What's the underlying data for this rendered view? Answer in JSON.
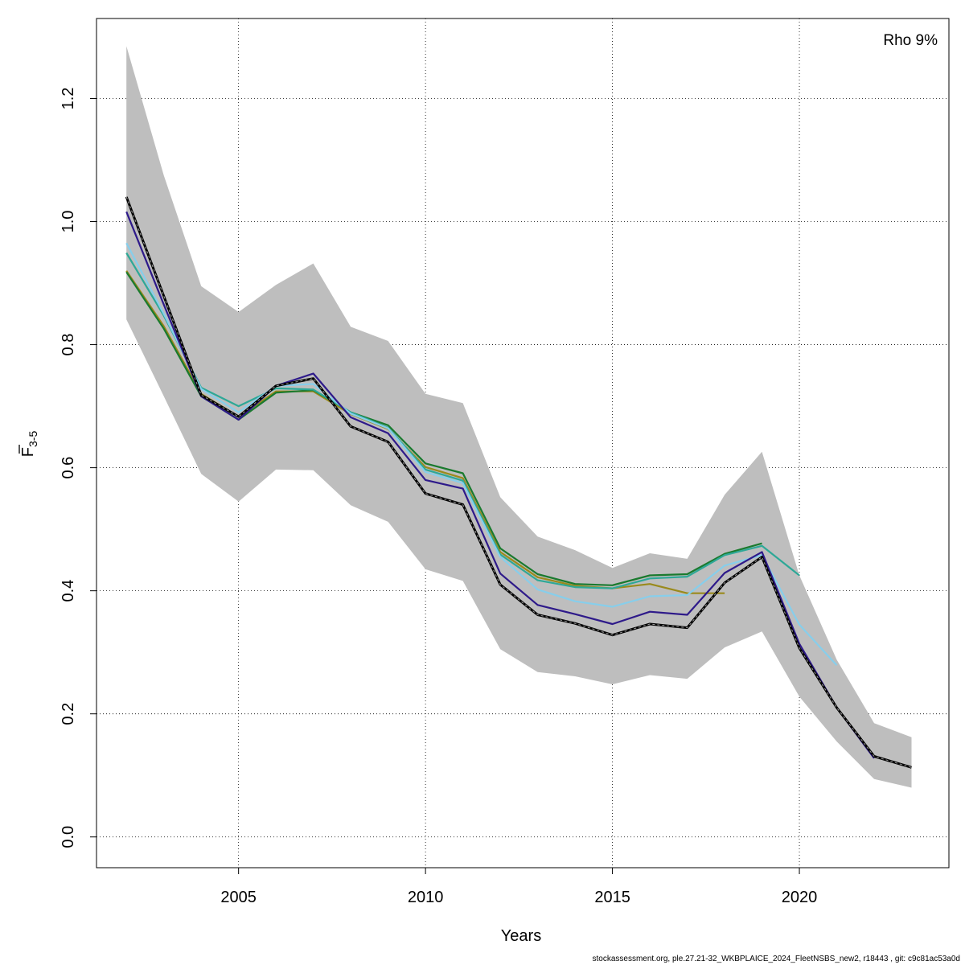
{
  "chart_data": {
    "type": "line",
    "xlabel": "Years",
    "ylabel_main": "F",
    "ylabel_sub": "3-5",
    "annotation": "Rho 9%",
    "xlim": [
      2001.2,
      2024.0
    ],
    "ylim": [
      -0.05,
      1.33
    ],
    "xticks": [
      2005,
      2010,
      2015,
      2020
    ],
    "yticks": [
      "0.0",
      "0.2",
      "0.4",
      "0.6",
      "0.8",
      "1.0",
      "1.2"
    ],
    "grid": true,
    "band": {
      "color": "#bebebe",
      "x": [
        2002,
        2003,
        2004,
        2005,
        2006,
        2007,
        2008,
        2009,
        2010,
        2011,
        2012,
        2013,
        2014,
        2015,
        2016,
        2017,
        2018,
        2019,
        2020,
        2021,
        2022,
        2023
      ],
      "upper": [
        1.285,
        1.075,
        0.895,
        0.853,
        0.897,
        0.932,
        0.829,
        0.806,
        0.72,
        0.705,
        0.552,
        0.488,
        0.466,
        0.437,
        0.461,
        0.452,
        0.556,
        0.626,
        0.425,
        0.288,
        0.185,
        0.162
      ],
      "lower": [
        0.841,
        0.716,
        0.59,
        0.545,
        0.597,
        0.596,
        0.539,
        0.512,
        0.435,
        0.416,
        0.305,
        0.268,
        0.261,
        0.248,
        0.263,
        0.257,
        0.308,
        0.334,
        0.228,
        0.155,
        0.094,
        0.08
      ]
    },
    "series": [
      {
        "color": "#000000",
        "dashed": true,
        "x": [
          2002,
          2003,
          2004,
          2005,
          2006,
          2007,
          2008,
          2009,
          2010,
          2011,
          2012,
          2013,
          2014,
          2015,
          2016,
          2017,
          2018,
          2019,
          2020,
          2021,
          2022,
          2023
        ],
        "values": [
          1.04,
          0.879,
          0.718,
          0.683,
          0.733,
          0.745,
          0.667,
          0.642,
          0.558,
          0.54,
          0.41,
          0.361,
          0.347,
          0.328,
          0.346,
          0.34,
          0.413,
          0.455,
          0.307,
          0.21,
          0.131,
          0.113
        ]
      },
      {
        "color": "#2e1a8a",
        "dashed": false,
        "x": [
          2002,
          2003,
          2004,
          2005,
          2006,
          2007,
          2008,
          2009,
          2010,
          2011,
          2012,
          2013,
          2014,
          2015,
          2016,
          2017,
          2018,
          2019,
          2020,
          2021,
          2022
        ],
        "values": [
          1.016,
          0.865,
          0.716,
          0.678,
          0.733,
          0.753,
          0.682,
          0.656,
          0.58,
          0.566,
          0.428,
          0.377,
          0.362,
          0.346,
          0.366,
          0.361,
          0.429,
          0.463,
          0.314,
          0.21,
          0.128
        ]
      },
      {
        "color": "#87ceeb",
        "dashed": false,
        "x": [
          2002,
          2003,
          2004,
          2005,
          2006,
          2007,
          2008,
          2009,
          2010,
          2011,
          2012,
          2013,
          2014,
          2015,
          2016,
          2017,
          2018,
          2019,
          2020,
          2021
        ],
        "values": [
          0.965,
          0.85,
          0.728,
          0.69,
          0.733,
          0.736,
          0.688,
          0.664,
          0.593,
          0.575,
          0.455,
          0.402,
          0.383,
          0.374,
          0.391,
          0.393,
          0.441,
          0.458,
          0.345,
          0.279
        ]
      },
      {
        "color": "#2ea897",
        "dashed": false,
        "x": [
          2002,
          2003,
          2004,
          2005,
          2006,
          2007,
          2008,
          2009,
          2010,
          2011,
          2012,
          2013,
          2014,
          2015,
          2016,
          2017,
          2018,
          2019,
          2020
        ],
        "values": [
          0.949,
          0.847,
          0.73,
          0.7,
          0.729,
          0.727,
          0.69,
          0.665,
          0.597,
          0.579,
          0.459,
          0.417,
          0.406,
          0.404,
          0.42,
          0.423,
          0.458,
          0.473,
          0.425
        ]
      },
      {
        "color": "#1a7a2e",
        "dashed": false,
        "x": [
          2002,
          2003,
          2004,
          2005,
          2006,
          2007,
          2008,
          2009,
          2010,
          2011,
          2012,
          2013,
          2014,
          2015,
          2016,
          2017,
          2018,
          2019
        ],
        "values": [
          0.918,
          0.826,
          0.716,
          0.678,
          0.722,
          0.726,
          0.69,
          0.669,
          0.607,
          0.591,
          0.469,
          0.427,
          0.411,
          0.409,
          0.425,
          0.427,
          0.46,
          0.477
        ]
      },
      {
        "color": "#9a8a1c",
        "dashed": false,
        "x": [
          2002,
          2003,
          2004,
          2005,
          2006,
          2007,
          2008,
          2009,
          2010,
          2011,
          2012,
          2013,
          2014,
          2015,
          2016,
          2017,
          2018
        ],
        "values": [
          0.92,
          0.83,
          0.72,
          0.683,
          0.724,
          0.724,
          0.687,
          0.663,
          0.601,
          0.583,
          0.463,
          0.422,
          0.408,
          0.404,
          0.411,
          0.396,
          0.396
        ]
      }
    ]
  },
  "footer_text": "stockassessment.org, ple.27.21-32_WKBPLAICE_2024_FleetNSBS_new2, r18443 , git: c9c81ac53a0d"
}
